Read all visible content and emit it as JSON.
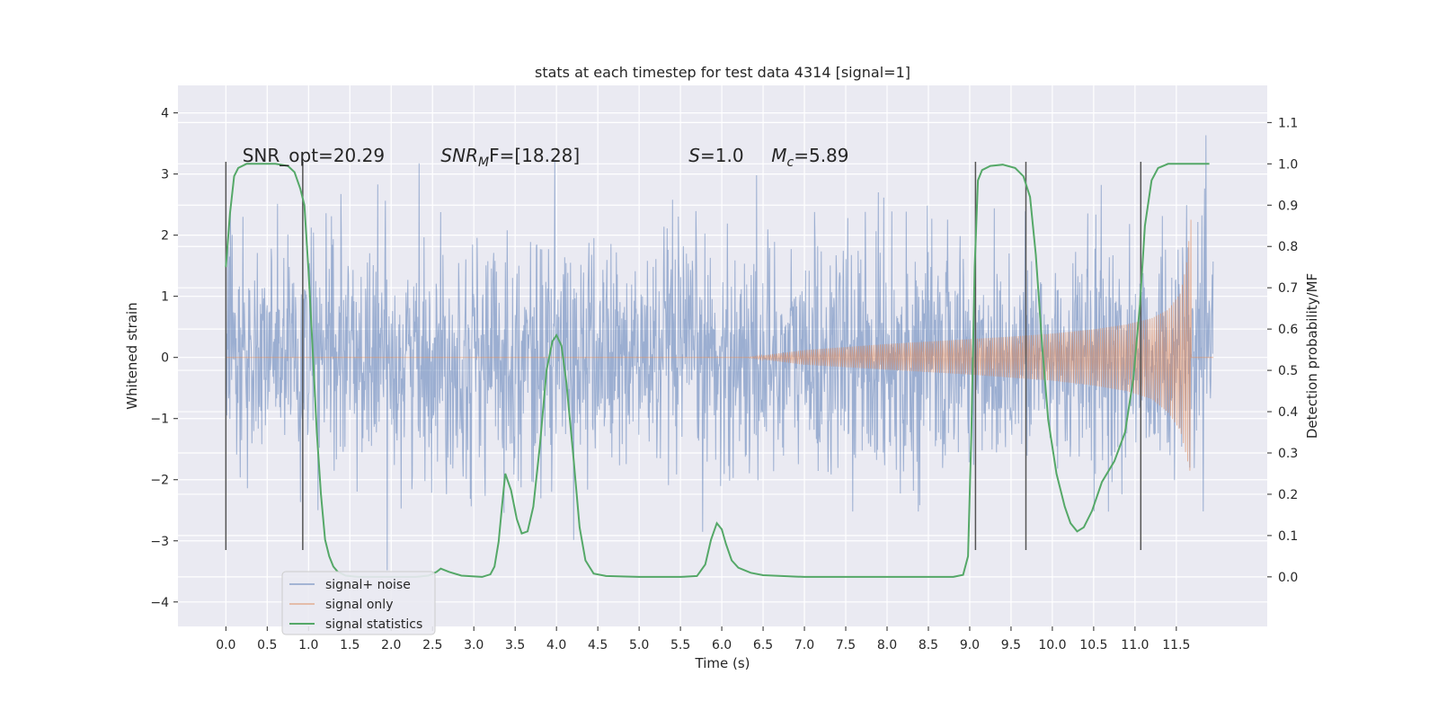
{
  "chart_data": {
    "type": "line",
    "title": "stats at each timestep for test data 4314 [signal=1]",
    "xlabel": "Time (s)",
    "ylabel": "Whitened strain",
    "y2label": "Detection probability/MF",
    "xlim": [
      -0.58,
      12.6
    ],
    "ylim": [
      -4.4,
      4.45
    ],
    "y2lim": [
      -0.12,
      1.19
    ],
    "xticks": [
      0.0,
      0.5,
      1.0,
      1.5,
      2.0,
      2.5,
      3.0,
      3.5,
      4.0,
      4.5,
      5.0,
      5.5,
      6.0,
      6.5,
      7.0,
      7.5,
      8.0,
      8.5,
      9.0,
      9.5,
      10.0,
      10.5,
      11.0,
      11.5
    ],
    "xtick_labels": [
      "0.0",
      "0.5",
      "1.0",
      "1.5",
      "2.0",
      "2.5",
      "3.0",
      "3.5",
      "4.0",
      "4.5",
      "5.0",
      "5.5",
      "6.0",
      "6.5",
      "7.0",
      "7.5",
      "8.0",
      "8.5",
      "9.0",
      "9.5",
      "10.0",
      "10.5",
      "11.0",
      "11.5"
    ],
    "yticks": [
      -4,
      -3,
      -2,
      -1,
      0,
      1,
      2,
      3,
      4
    ],
    "ytick_labels": [
      "−4",
      "−3",
      "−2",
      "−1",
      "0",
      "1",
      "2",
      "3",
      "4"
    ],
    "y2ticks": [
      0.0,
      0.1,
      0.2,
      0.3,
      0.4,
      0.5,
      0.6,
      0.7,
      0.8,
      0.9,
      1.0,
      1.1
    ],
    "y2tick_labels": [
      "0.0",
      "0.1",
      "0.2",
      "0.3",
      "0.4",
      "0.5",
      "0.6",
      "0.7",
      "0.8",
      "0.9",
      "1.0",
      "1.1"
    ],
    "grid": true,
    "legend_position": "lower-left",
    "annotations": [
      {
        "x": 0.2,
        "y": 3.3,
        "prefix": "SNR_opt=",
        "italic": "",
        "sub": "",
        "suffix": "20.29"
      },
      {
        "x": 2.6,
        "y": 3.3,
        "prefix": "",
        "italic": "SNR",
        "sub": "M",
        "suffix": "F=[18.28]"
      },
      {
        "x": 5.6,
        "y": 3.3,
        "prefix": "",
        "italic": "S",
        "sub": "",
        "suffix": "=1.0"
      },
      {
        "x": 6.6,
        "y": 3.3,
        "prefix": "",
        "italic": "M",
        "sub": "c",
        "suffix": "=5.89"
      }
    ],
    "vlines": [
      0.0,
      0.93,
      9.07,
      9.68,
      11.07
    ],
    "vline_range": [
      -3.15,
      3.2
    ],
    "series": [
      {
        "name": "signal+ noise",
        "color": "#4c72b0",
        "kind": "noise",
        "t_range": [
          0.0,
          11.95
        ],
        "amplitude_std": 0.95,
        "extreme_low": -4.05,
        "extreme_high": 4.1
      },
      {
        "name": "signal only",
        "color": "#dd8452",
        "kind": "chirp",
        "t": [
          6.3,
          7.0,
          8.0,
          9.0,
          9.5,
          10.0,
          10.5,
          10.9,
          11.2,
          11.4,
          11.55,
          11.62,
          11.68
        ],
        "envelope_upper": [
          0.0,
          0.12,
          0.22,
          0.3,
          0.34,
          0.39,
          0.46,
          0.54,
          0.64,
          0.78,
          1.05,
          1.5,
          2.3
        ],
        "envelope_lower": [
          0.0,
          -0.12,
          -0.2,
          -0.28,
          -0.33,
          -0.38,
          -0.46,
          -0.55,
          -0.68,
          -0.9,
          -1.2,
          -1.6,
          -1.95
        ]
      },
      {
        "name": "signal statistics",
        "color": "#55a868",
        "kind": "line",
        "axis": "right",
        "x": [
          0.0,
          0.05,
          0.1,
          0.15,
          0.25,
          0.4,
          0.6,
          0.75,
          0.83,
          0.9,
          0.95,
          1.0,
          1.05,
          1.1,
          1.15,
          1.2,
          1.25,
          1.3,
          1.35,
          1.45,
          1.6,
          2.0,
          2.3,
          2.45,
          2.55,
          2.6,
          2.7,
          2.85,
          3.1,
          3.2,
          3.25,
          3.3,
          3.35,
          3.38,
          3.45,
          3.52,
          3.58,
          3.65,
          3.72,
          3.8,
          3.88,
          3.95,
          4.0,
          4.06,
          4.12,
          4.2,
          4.28,
          4.35,
          4.45,
          4.6,
          5.0,
          5.5,
          5.7,
          5.8,
          5.87,
          5.94,
          6.0,
          6.05,
          6.12,
          6.2,
          6.35,
          6.5,
          7.0,
          8.0,
          8.8,
          8.92,
          8.98,
          9.02,
          9.06,
          9.1,
          9.15,
          9.25,
          9.4,
          9.55,
          9.65,
          9.73,
          9.8,
          9.88,
          9.95,
          10.05,
          10.15,
          10.22,
          10.3,
          10.38,
          10.48,
          10.6,
          10.75,
          10.88,
          10.98,
          11.06,
          11.12,
          11.2,
          11.28,
          11.4,
          11.6,
          11.8,
          11.9
        ],
        "y": [
          0.75,
          0.88,
          0.97,
          0.99,
          1.0,
          1.0,
          1.0,
          0.995,
          0.98,
          0.94,
          0.9,
          0.74,
          0.55,
          0.35,
          0.2,
          0.09,
          0.05,
          0.025,
          0.013,
          0.003,
          0.0,
          0.0,
          0.0,
          0.003,
          0.012,
          0.02,
          0.012,
          0.003,
          0.0,
          0.006,
          0.025,
          0.085,
          0.19,
          0.25,
          0.21,
          0.14,
          0.105,
          0.11,
          0.17,
          0.32,
          0.5,
          0.57,
          0.585,
          0.56,
          0.47,
          0.3,
          0.12,
          0.04,
          0.008,
          0.002,
          0.0,
          0.0,
          0.002,
          0.03,
          0.09,
          0.13,
          0.115,
          0.08,
          0.04,
          0.022,
          0.01,
          0.004,
          0.0,
          0.0,
          0.0,
          0.005,
          0.05,
          0.35,
          0.75,
          0.96,
          0.985,
          0.995,
          0.998,
          0.99,
          0.97,
          0.92,
          0.78,
          0.55,
          0.38,
          0.25,
          0.17,
          0.13,
          0.11,
          0.12,
          0.16,
          0.23,
          0.28,
          0.35,
          0.48,
          0.66,
          0.85,
          0.96,
          0.99,
          1.0,
          1.0,
          1.0,
          1.0
        ]
      }
    ]
  }
}
